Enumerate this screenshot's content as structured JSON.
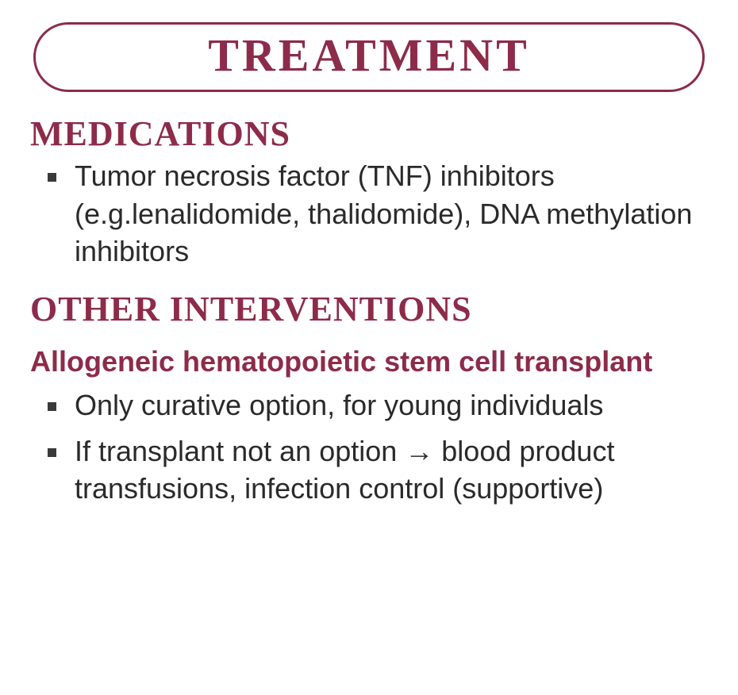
{
  "colors": {
    "accent": "#8d2b4a",
    "text": "#2a2a2a",
    "background": "#ffffff",
    "bullet": "#3a3a3a"
  },
  "typography": {
    "title_font": "Comic Sans / hand-drawn display",
    "title_fontsize": 58,
    "heading_fontsize": 44,
    "subheading_fontsize": 36,
    "body_fontsize": 36
  },
  "title": "TREATMENT",
  "sections": [
    {
      "heading": "MEDICATIONS",
      "bullets": [
        "Tumor necrosis factor (TNF) inhibitors (e.g.lenalidomide, thalidomide), DNA methylation inhibitors"
      ]
    },
    {
      "heading": "OTHER INTERVENTIONS",
      "subheading": "Allogeneic hematopoietic stem cell trans­plant",
      "bullets": [
        "Only curative option, for young individuals",
        "If transplant not an option → blood product transfusions, infection control (supportive)"
      ]
    }
  ]
}
